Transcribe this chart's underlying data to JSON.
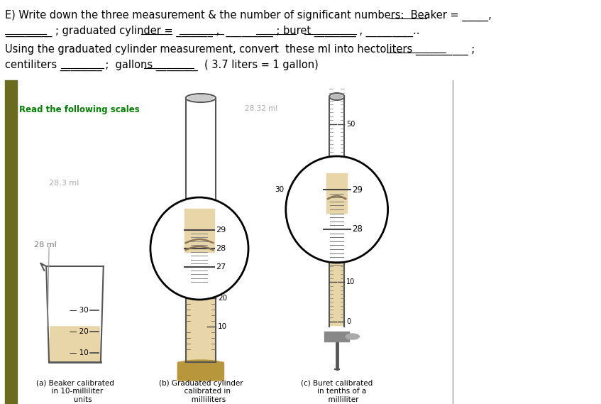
{
  "bg_color": "#ffffff",
  "title_line1": "E) Write down the three measurement & the number of significant numbers:  Beaker = _____,",
  "title_line2": "_________ ; graduated cylinder = _______ ,  _________ ; buret ________ , _________..",
  "line3": "Using the graduated cylinder measurement, convert  these ml into hectoliters __________ ;",
  "line4": "centiliters ________ ;  gallons ________  ( 3.7 liters = 1 gallon)",
  "read_scales_text": "Read the following scales",
  "annotation_283ml": "28.3 ml",
  "annotation_28ml": "28 ml",
  "annotation_2832ml": "28.32 ml",
  "label_a": "(a) Beaker calibrated\n    in 10-milliliter\n         units",
  "label_b": "(b) Graduated cylinder\n         calibrated in\n          milliliters",
  "label_c": "(c) Buret calibrated\n      in tenths of a\n        milliliter",
  "olive_bar_color": "#6b6b1e",
  "green_text_color": "#008000",
  "beige": "#e8d5a8",
  "beige_dark": "#c8b070",
  "gray_line": "#777777",
  "dark_line": "#444444"
}
